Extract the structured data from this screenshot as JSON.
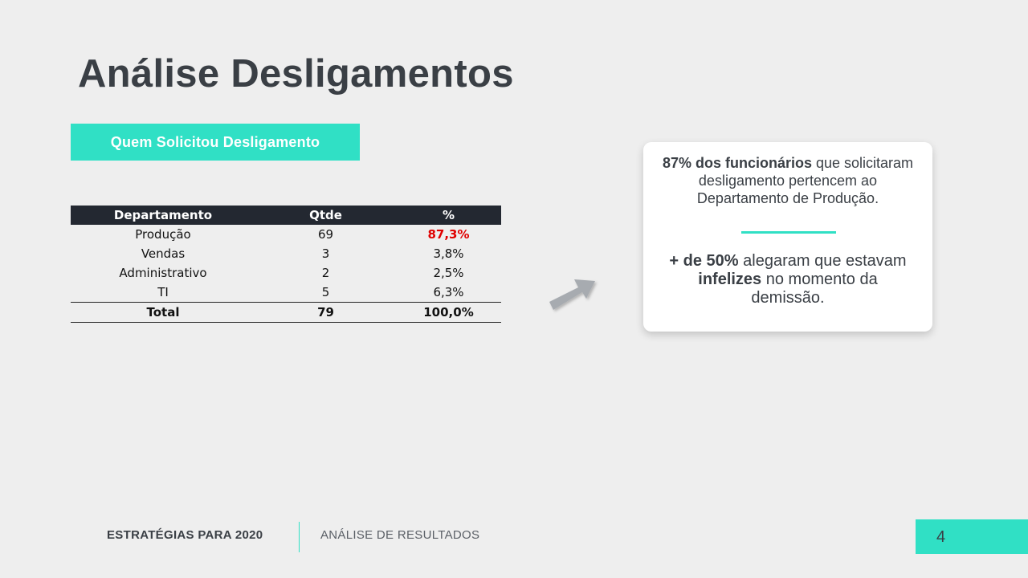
{
  "slide": {
    "title": "Análise Desligamentos",
    "section_label": "Quem Solicitou Desligamento"
  },
  "table": {
    "headers": [
      "Departamento",
      "Qtde",
      "%"
    ],
    "rows": [
      {
        "departamento": "Produção",
        "qtde": "69",
        "pct": "87,3%"
      },
      {
        "departamento": "Vendas",
        "qtde": "3",
        "pct": "3,8%"
      },
      {
        "departamento": "Administrativo",
        "qtde": "2",
        "pct": "2,5%"
      },
      {
        "departamento": "TI",
        "qtde": "5",
        "pct": "6,3%"
      }
    ],
    "total": {
      "departamento": "Total",
      "qtde": "79",
      "pct": "100,0%"
    }
  },
  "insight": {
    "p1_bold": "87% dos funcionários",
    "p1_rest": " que solicitaram desligamento pertencem ao Departamento de Produção.",
    "p2_bold1": "+ de 50%",
    "p2_mid": " alegaram que estavam ",
    "p2_bold2": "infelizes",
    "p2_end": " no momento da demissão."
  },
  "footer": {
    "left": "ESTRATÉGIAS PARA 2020",
    "right": "ANÁLISE DE RESULTADOS",
    "page": "4"
  },
  "colors": {
    "accent": "#30e0c5",
    "header_bg": "#232831",
    "highlight": "#e00000",
    "background": "#eeeeee",
    "title": "#3a3f45"
  },
  "icons": {
    "arrow": "arrow-up-right-icon"
  }
}
